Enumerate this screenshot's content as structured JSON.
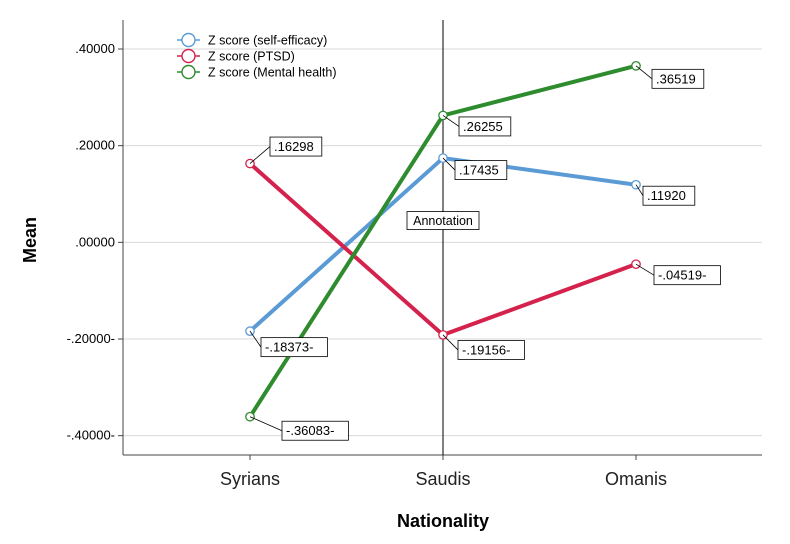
{
  "chart_data": {
    "type": "line",
    "xlabel": "Nationality",
    "ylabel": "Mean",
    "categories": [
      "Syrians",
      "Saudis",
      "Omanis"
    ],
    "ylim": [
      -0.44,
      0.46
    ],
    "yticks": [
      -0.4,
      -0.2,
      0.0,
      0.2,
      0.4
    ],
    "ytick_labels": [
      "-.40000-",
      "-.20000-",
      ".00000",
      ".20000",
      ".40000"
    ],
    "legend_position": "top-left",
    "grid": true,
    "reference_line": {
      "category": "Saudis",
      "annotation": "Annotation"
    },
    "series": [
      {
        "name": "Z score (self-efficacy)",
        "color": "#5b9bd5",
        "values": [
          -0.18373,
          0.17435,
          0.1192
        ],
        "labels": [
          "-.18373-",
          ".17435",
          ".11920"
        ]
      },
      {
        "name": "Z score (PTSD)",
        "color": "#d4224c",
        "values": [
          0.16298,
          -0.19156,
          -0.04519
        ],
        "labels": [
          ".16298",
          "-.19156-",
          "-.04519-"
        ]
      },
      {
        "name": "Z score (Mental health)",
        "color": "#2e8b2e",
        "values": [
          -0.36083,
          0.26255,
          0.36519
        ],
        "labels": [
          "-.36083-",
          ".26255",
          ".36519"
        ]
      }
    ]
  }
}
